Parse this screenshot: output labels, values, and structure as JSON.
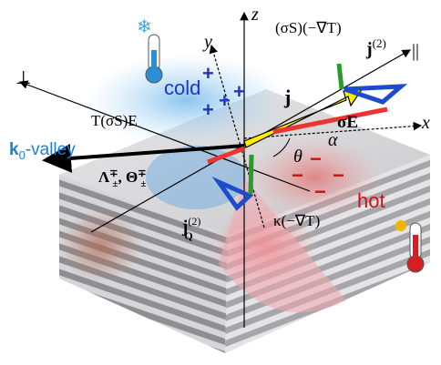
{
  "labels": {
    "axis_z": "z",
    "axis_y": "y",
    "axis_x": "x",
    "grad_term": "(σS)(−∇T)",
    "j2": {
      "base": "j",
      "sup": "(2)"
    },
    "parallel": "||",
    "perp": "⊥",
    "cold": "cold",
    "hot": "hot",
    "j": "j",
    "tse": "T(σS)E",
    "sigma_e": "σE",
    "valley": {
      "base": "k",
      "sub": "0",
      "rest": "-valley"
    },
    "theta": "θ",
    "alpha": "α",
    "lambda_theta": {
      "lambda": "Λ",
      "lsup": "∓",
      "lsub": "±",
      "sep": ", ",
      "theta": "Θ",
      "tsup": "∓",
      "tsub": "±"
    },
    "jq2": {
      "base": "j",
      "sub": "Q",
      "sup": "(2)"
    },
    "kappa": "κ(−∇T)",
    "plus": [
      "+",
      "+",
      "+",
      "+"
    ],
    "minus": [
      "−",
      "−",
      "−",
      "−"
    ]
  }
}
